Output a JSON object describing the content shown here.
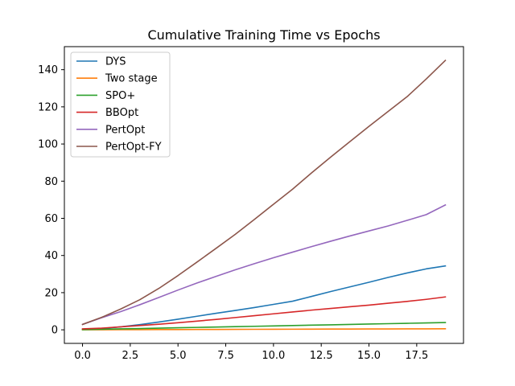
{
  "chart_data": {
    "type": "line",
    "title": "Cumulative Training Time vs Epochs",
    "xlabel": "",
    "ylabel": "",
    "xlim": [
      -0.95,
      19.95
    ],
    "ylim": [
      -7.3,
      152.4
    ],
    "x_ticks": [
      0.0,
      2.5,
      5.0,
      7.5,
      10.0,
      12.5,
      15.0,
      17.5
    ],
    "x_tick_labels": [
      "0.0",
      "2.5",
      "5.0",
      "7.5",
      "10.0",
      "12.5",
      "15.0",
      "17.5"
    ],
    "y_ticks": [
      0,
      20,
      40,
      60,
      80,
      100,
      120,
      140
    ],
    "y_tick_labels": [
      "0",
      "20",
      "40",
      "60",
      "80",
      "100",
      "120",
      "140"
    ],
    "grid": false,
    "legend_position": "top-left",
    "x": [
      0,
      1,
      2,
      3,
      4,
      5,
      6,
      7,
      8,
      9,
      10,
      11,
      12,
      13,
      14,
      15,
      16,
      17,
      18,
      19
    ],
    "series": [
      {
        "name": "DYS",
        "color": "#1f77b4",
        "values": [
          0.3,
          0.7,
          1.6,
          2.8,
          4.2,
          5.7,
          7.3,
          8.9,
          10.4,
          12.0,
          13.7,
          15.4,
          18.0,
          20.6,
          23.1,
          25.6,
          28.2,
          30.6,
          32.8,
          34.4
        ]
      },
      {
        "name": "Two stage",
        "color": "#ff7f0e",
        "values": [
          0.0,
          0.03,
          0.06,
          0.09,
          0.12,
          0.15,
          0.18,
          0.21,
          0.24,
          0.27,
          0.3,
          0.33,
          0.36,
          0.39,
          0.42,
          0.45,
          0.48,
          0.51,
          0.54,
          0.57
        ]
      },
      {
        "name": "SPO+",
        "color": "#2ca02c",
        "values": [
          0.1,
          0.3,
          0.5,
          0.7,
          0.9,
          1.1,
          1.3,
          1.5,
          1.7,
          1.9,
          2.1,
          2.3,
          2.5,
          2.7,
          2.9,
          3.1,
          3.3,
          3.5,
          3.7,
          3.9
        ]
      },
      {
        "name": "BBOpt",
        "color": "#d62728",
        "values": [
          0.5,
          0.9,
          1.6,
          2.3,
          3.0,
          3.8,
          4.7,
          5.6,
          6.6,
          7.6,
          8.6,
          9.6,
          10.6,
          11.5,
          12.4,
          13.3,
          14.3,
          15.3,
          16.4,
          17.7
        ]
      },
      {
        "name": "PertOpt",
        "color": "#9467bd",
        "values": [
          2.9,
          6.5,
          9.8,
          13.5,
          17.4,
          21.4,
          25.2,
          28.8,
          32.3,
          35.6,
          38.8,
          41.8,
          44.8,
          47.7,
          50.5,
          53.2,
          55.9,
          58.9,
          62.0,
          67.2
        ]
      },
      {
        "name": "PertOpt-FY",
        "color": "#8c564b",
        "values": [
          2.9,
          6.7,
          11.2,
          16.2,
          22.3,
          29.2,
          36.5,
          43.9,
          51.4,
          59.4,
          67.6,
          75.7,
          84.5,
          93.0,
          101.3,
          109.5,
          117.5,
          125.5,
          135.0,
          145.0
        ]
      }
    ]
  }
}
